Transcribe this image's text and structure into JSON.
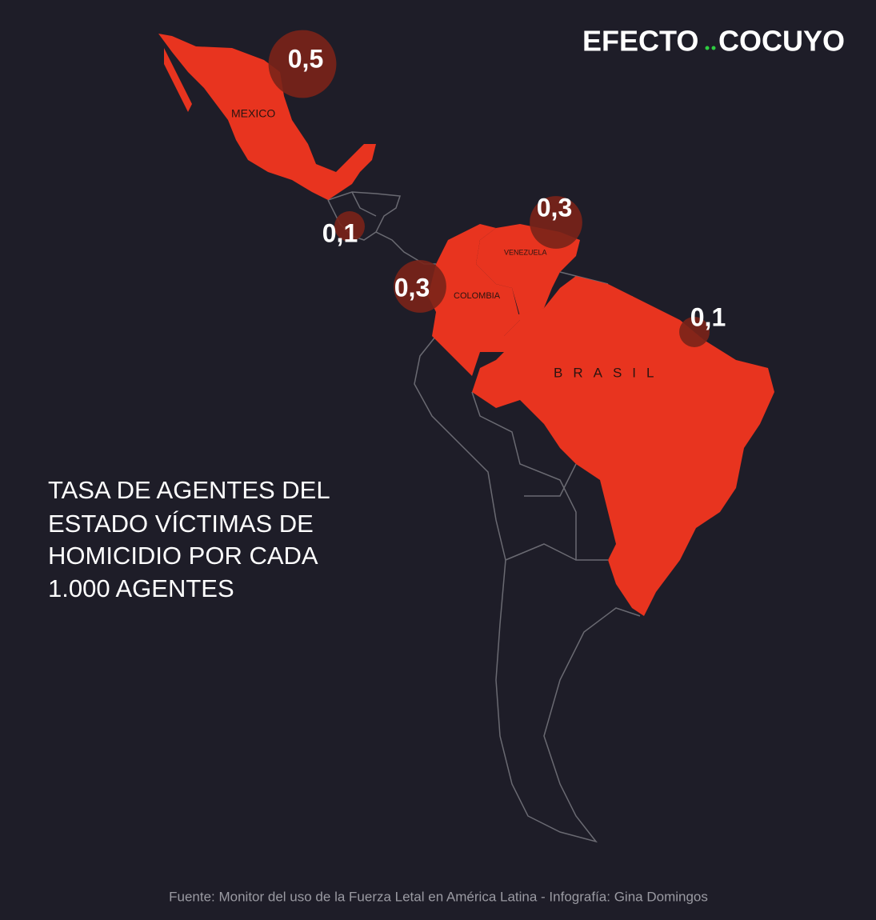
{
  "brand": {
    "left": "EFECTO",
    "right": "COCUYO"
  },
  "title": [
    "TASA DE AGENTES DEL",
    "ESTADO VÍCTIMAS DE",
    "HOMICIDIO  POR CADA",
    "1.000 AGENTES"
  ],
  "countries": [
    {
      "name": "MEXICO",
      "value": 0.5,
      "value_label": "0,5"
    },
    {
      "name": "VENEZUELA",
      "value": 0.3,
      "value_label": "0,3"
    },
    {
      "name": "COLOMBIA",
      "value": 0.3,
      "value_label": "0,3"
    },
    {
      "name": "BRASIL"
    }
  ],
  "markers": [
    {
      "value": 0.1,
      "value_label": "0,1"
    },
    {
      "value": 0.1,
      "value_label": "0,1"
    }
  ],
  "source": "Fuente: Monitor del uso de la Fuerza Letal en América Latina - Infografía: Gina Domingos"
}
